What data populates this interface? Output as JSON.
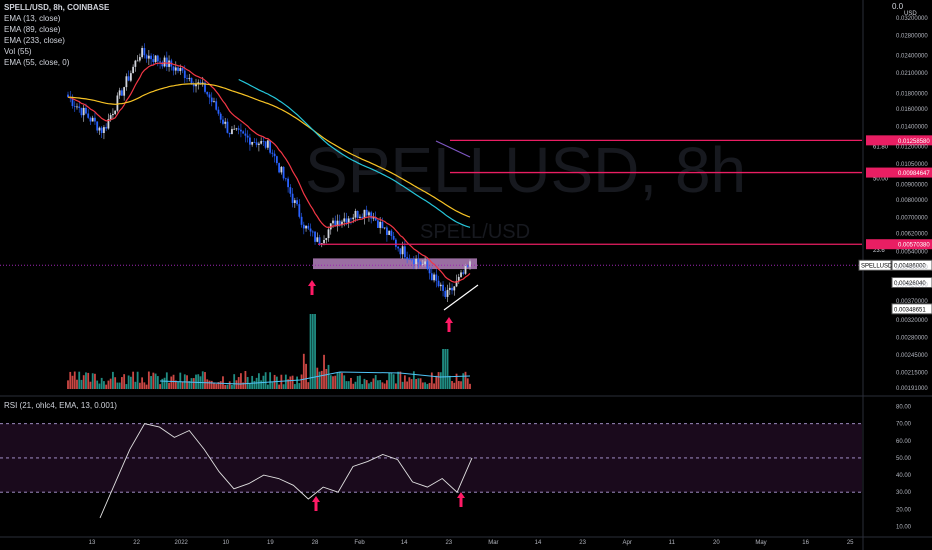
{
  "header": {
    "symbol": "SPELL/USD, 8h, COINBASE",
    "indicators": [
      "EMA (13, close)",
      "EMA (89, close)",
      "EMA (233, close)",
      "Vol (55)",
      "EMA (55, close, 0)"
    ]
  },
  "watermark": {
    "symbol": "SPELLUSD, 8h",
    "pair": "SPELL/USD"
  },
  "rsi_header": "RSI (21, ohlc4, EMA, 13, 0.001)",
  "colors": {
    "background": "#000000",
    "up_candle": "#d1d4dc",
    "down_candle": "#2962ff",
    "ema13": "#f23645",
    "ema89": "#f7c325",
    "ema233": "#26c6da",
    "level_line": "#e91e63",
    "support_zone": "#ce93d8",
    "price_line": "#9c27b0",
    "arrow": "#ff1a66",
    "rsi_line": "#e0e0e0",
    "rsi_band": "#1a0a1c",
    "volume_up": "#26a69a",
    "volume_down": "#ef5350"
  },
  "chart_data": [
    {
      "type": "candlestick",
      "scale": "log",
      "price_axis": {
        "unit_label": "USD",
        "top_label": "0.0",
        "ticks": [
          "0.03200000",
          "0.02800000",
          "0.02400000",
          "0.02100000",
          "0.01800000",
          "0.01600000",
          "0.01400000",
          "0.01200000",
          "0.01050000",
          "0.00900000",
          "0.00800000",
          "0.00700000",
          "0.00620000",
          "0.00540000",
          "0.00480000",
          "0.00420000",
          "0.00370000",
          "0.00320000",
          "0.00280000",
          "0.00245000",
          "0.00215000",
          "0.00191000"
        ]
      },
      "time_axis": {
        "ticks": [
          "13",
          "22",
          "2022",
          "10",
          "19",
          "28",
          "Feb",
          "14",
          "23",
          "Mar",
          "14",
          "23",
          "Apr",
          "11",
          "20",
          "May",
          "16",
          "25"
        ]
      },
      "price_path": [
        {
          "x": "13",
          "y": 0.0175
        },
        {
          "x": "17",
          "y": 0.0135
        },
        {
          "x": "22",
          "y": 0.0245
        },
        {
          "x": "26",
          "y": 0.023
        },
        {
          "x": "2022",
          "y": 0.021
        },
        {
          "x": "5",
          "y": 0.0185
        },
        {
          "x": "10",
          "y": 0.0135
        },
        {
          "x": "19",
          "y": 0.012
        },
        {
          "x": "24",
          "y": 0.0065
        },
        {
          "x": "28",
          "y": 0.0058
        },
        {
          "x": "Feb",
          "y": 0.0068
        },
        {
          "x": "7",
          "y": 0.0074
        },
        {
          "x": "14",
          "y": 0.0055
        },
        {
          "x": "20",
          "y": 0.0048
        },
        {
          "x": "24",
          "y": 0.0038
        },
        {
          "x": "Mar",
          "y": 0.00486
        }
      ],
      "fib_levels": [
        {
          "label": "61.80",
          "price": "0.01258580"
        },
        {
          "label": "50.00",
          "price": "0.00984647"
        },
        {
          "label": "23.6",
          "price": "0.00570380"
        }
      ],
      "price_tags": [
        {
          "label": "SPELLUSD",
          "price": "0.00486000"
        },
        {
          "label": "",
          "price": "0.00426040"
        },
        {
          "label": "",
          "price": "0.00348651"
        }
      ],
      "support_zone": {
        "low": 0.00472,
        "high": 0.00512
      },
      "annotations": [
        "support arrow 1",
        "support arrow 2"
      ]
    },
    {
      "type": "line",
      "title": "RSI (21, ohlc4, EMA, 13, 0.001)",
      "y_ticks": [
        "80.00",
        "70.00",
        "60.00",
        "50.00",
        "40.00",
        "30.00",
        "20.00",
        "10.00"
      ],
      "bands": [
        70,
        50,
        30
      ],
      "values": [
        15,
        35,
        55,
        70,
        68,
        62,
        66,
        55,
        42,
        32,
        35,
        40,
        38,
        34,
        26,
        33,
        30,
        45,
        48,
        52,
        49,
        36,
        33,
        38,
        30,
        50
      ]
    }
  ]
}
